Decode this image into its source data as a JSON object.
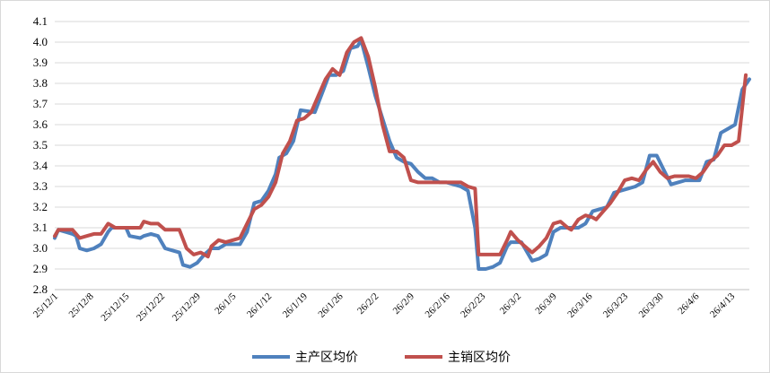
{
  "chart_data": {
    "type": "line",
    "title": "",
    "xlabel": "",
    "ylabel": "",
    "ylim": [
      2.8,
      4.1
    ],
    "yticks": [
      "4.1",
      "4.0",
      "3.9",
      "3.8",
      "3.7",
      "3.6",
      "3.5",
      "3.4",
      "3.3",
      "3.2",
      "3.1",
      "3.0",
      "2.9",
      "2.8"
    ],
    "xticks": [
      "25/12/1",
      "25/12/8",
      "25/12/15",
      "25/12/22",
      "25/12/29",
      "26/1/5",
      "26/1/12",
      "26/1/19",
      "26/1/26",
      "26/2/2",
      "26/2/9",
      "26/2/16",
      "26/2/23",
      "26/3/2",
      "26/3/9",
      "26/3/16",
      "26/3/23",
      "26/3/30",
      "26/4/6",
      "26/4/13"
    ],
    "x_range_days": [
      0,
      137
    ],
    "grid": true,
    "legend_position": "bottom",
    "series": [
      {
        "name": "主产区均价",
        "color": "#4f81bd",
        "points": [
          [
            0,
            3.05
          ],
          [
            1,
            3.09
          ],
          [
            3,
            3.08
          ],
          [
            5,
            3.07
          ],
          [
            6,
            3.06
          ],
          [
            7,
            3.0
          ],
          [
            9,
            2.99
          ],
          [
            11,
            3.0
          ],
          [
            13,
            3.02
          ],
          [
            15,
            3.08
          ],
          [
            16,
            3.1
          ],
          [
            18,
            3.1
          ],
          [
            20,
            3.1
          ],
          [
            21,
            3.06
          ],
          [
            24,
            3.05
          ],
          [
            25,
            3.06
          ],
          [
            27,
            3.07
          ],
          [
            29,
            3.06
          ],
          [
            31,
            3.0
          ],
          [
            33,
            2.99
          ],
          [
            35,
            2.98
          ],
          [
            36,
            2.92
          ],
          [
            38,
            2.91
          ],
          [
            40,
            2.93
          ],
          [
            42,
            2.97
          ],
          [
            44,
            3.0
          ],
          [
            46,
            3.0
          ],
          [
            48,
            3.02
          ],
          [
            52,
            3.02
          ],
          [
            54,
            3.08
          ],
          [
            56,
            3.22
          ],
          [
            58,
            3.23
          ],
          [
            60,
            3.28
          ],
          [
            62,
            3.36
          ],
          [
            63,
            3.44
          ],
          [
            65,
            3.46
          ],
          [
            67,
            3.52
          ],
          [
            69,
            3.67
          ],
          [
            73,
            3.66
          ],
          [
            75,
            3.75
          ],
          [
            77,
            3.84
          ],
          [
            79,
            3.84
          ],
          [
            81,
            3.86
          ],
          [
            83,
            3.97
          ],
          [
            85,
            3.98
          ],
          [
            86,
            4.01
          ],
          [
            88,
            3.88
          ],
          [
            90,
            3.74
          ],
          [
            92,
            3.63
          ],
          [
            94,
            3.52
          ],
          [
            96,
            3.44
          ],
          [
            98,
            3.42
          ],
          [
            100,
            3.41
          ],
          [
            102,
            3.37
          ],
          [
            104,
            3.34
          ],
          [
            106,
            3.34
          ],
          [
            108,
            3.32
          ],
          [
            110,
            3.32
          ],
          [
            112,
            3.31
          ],
          [
            114,
            3.3
          ],
          [
            116,
            3.28
          ],
          [
            118,
            3.1
          ],
          [
            119,
            2.9
          ],
          [
            121,
            2.9
          ],
          [
            123,
            2.91
          ],
          [
            125,
            2.93
          ],
          [
            127,
            3.01
          ],
          [
            128,
            3.03
          ],
          [
            131,
            3.03
          ],
          [
            133,
            2.97
          ],
          [
            134,
            2.94
          ],
          [
            136,
            2.95
          ],
          [
            138,
            2.97
          ],
          [
            140,
            3.08
          ],
          [
            142,
            3.1
          ],
          [
            144,
            3.1
          ],
          [
            147,
            3.1
          ],
          [
            149,
            3.12
          ],
          [
            151,
            3.18
          ],
          [
            153,
            3.19
          ],
          [
            155,
            3.2
          ],
          [
            157,
            3.27
          ],
          [
            159,
            3.28
          ],
          [
            161,
            3.29
          ],
          [
            163,
            3.3
          ],
          [
            165,
            3.32
          ],
          [
            167,
            3.45
          ],
          [
            169,
            3.45
          ],
          [
            171,
            3.38
          ],
          [
            173,
            3.31
          ],
          [
            175,
            3.32
          ],
          [
            177,
            3.33
          ],
          [
            179,
            3.33
          ],
          [
            181,
            3.33
          ],
          [
            183,
            3.42
          ],
          [
            185,
            3.43
          ],
          [
            187,
            3.56
          ],
          [
            189,
            3.58
          ],
          [
            191,
            3.6
          ],
          [
            193,
            3.77
          ],
          [
            195,
            3.82
          ]
        ]
      },
      {
        "name": "主销区均价",
        "color": "#c0504d",
        "points": [
          [
            0,
            3.06
          ],
          [
            1,
            3.09
          ],
          [
            3,
            3.09
          ],
          [
            5,
            3.09
          ],
          [
            7,
            3.05
          ],
          [
            9,
            3.06
          ],
          [
            11,
            3.07
          ],
          [
            13,
            3.07
          ],
          [
            15,
            3.12
          ],
          [
            17,
            3.1
          ],
          [
            20,
            3.1
          ],
          [
            24,
            3.1
          ],
          [
            25,
            3.13
          ],
          [
            27,
            3.12
          ],
          [
            29,
            3.12
          ],
          [
            31,
            3.09
          ],
          [
            35,
            3.09
          ],
          [
            37,
            3.0
          ],
          [
            39,
            2.97
          ],
          [
            41,
            2.98
          ],
          [
            43,
            2.96
          ],
          [
            44,
            3.01
          ],
          [
            46,
            3.04
          ],
          [
            48,
            3.03
          ],
          [
            50,
            3.04
          ],
          [
            52,
            3.05
          ],
          [
            54,
            3.12
          ],
          [
            56,
            3.19
          ],
          [
            58,
            3.21
          ],
          [
            60,
            3.25
          ],
          [
            62,
            3.32
          ],
          [
            64,
            3.46
          ],
          [
            66,
            3.52
          ],
          [
            68,
            3.62
          ],
          [
            70,
            3.63
          ],
          [
            72,
            3.66
          ],
          [
            74,
            3.74
          ],
          [
            76,
            3.82
          ],
          [
            78,
            3.87
          ],
          [
            80,
            3.84
          ],
          [
            82,
            3.95
          ],
          [
            84,
            4.0
          ],
          [
            86,
            4.02
          ],
          [
            88,
            3.93
          ],
          [
            90,
            3.78
          ],
          [
            92,
            3.6
          ],
          [
            94,
            3.47
          ],
          [
            96,
            3.47
          ],
          [
            98,
            3.44
          ],
          [
            100,
            3.33
          ],
          [
            102,
            3.32
          ],
          [
            104,
            3.32
          ],
          [
            106,
            3.32
          ],
          [
            110,
            3.32
          ],
          [
            114,
            3.32
          ],
          [
            116,
            3.3
          ],
          [
            118,
            3.29
          ],
          [
            119,
            2.97
          ],
          [
            123,
            2.97
          ],
          [
            125,
            2.97
          ],
          [
            127,
            3.04
          ],
          [
            128,
            3.08
          ],
          [
            130,
            3.04
          ],
          [
            132,
            3.01
          ],
          [
            134,
            2.98
          ],
          [
            136,
            3.01
          ],
          [
            138,
            3.05
          ],
          [
            140,
            3.12
          ],
          [
            142,
            3.13
          ],
          [
            144,
            3.1
          ],
          [
            145,
            3.09
          ],
          [
            147,
            3.14
          ],
          [
            149,
            3.16
          ],
          [
            151,
            3.15
          ],
          [
            152,
            3.14
          ],
          [
            154,
            3.18
          ],
          [
            156,
            3.22
          ],
          [
            158,
            3.27
          ],
          [
            160,
            3.33
          ],
          [
            162,
            3.34
          ],
          [
            164,
            3.33
          ],
          [
            166,
            3.38
          ],
          [
            168,
            3.42
          ],
          [
            170,
            3.37
          ],
          [
            172,
            3.34
          ],
          [
            174,
            3.35
          ],
          [
            178,
            3.35
          ],
          [
            180,
            3.34
          ],
          [
            182,
            3.37
          ],
          [
            184,
            3.42
          ],
          [
            186,
            3.45
          ],
          [
            188,
            3.5
          ],
          [
            190,
            3.5
          ],
          [
            192,
            3.52
          ],
          [
            194,
            3.84
          ]
        ]
      }
    ]
  }
}
